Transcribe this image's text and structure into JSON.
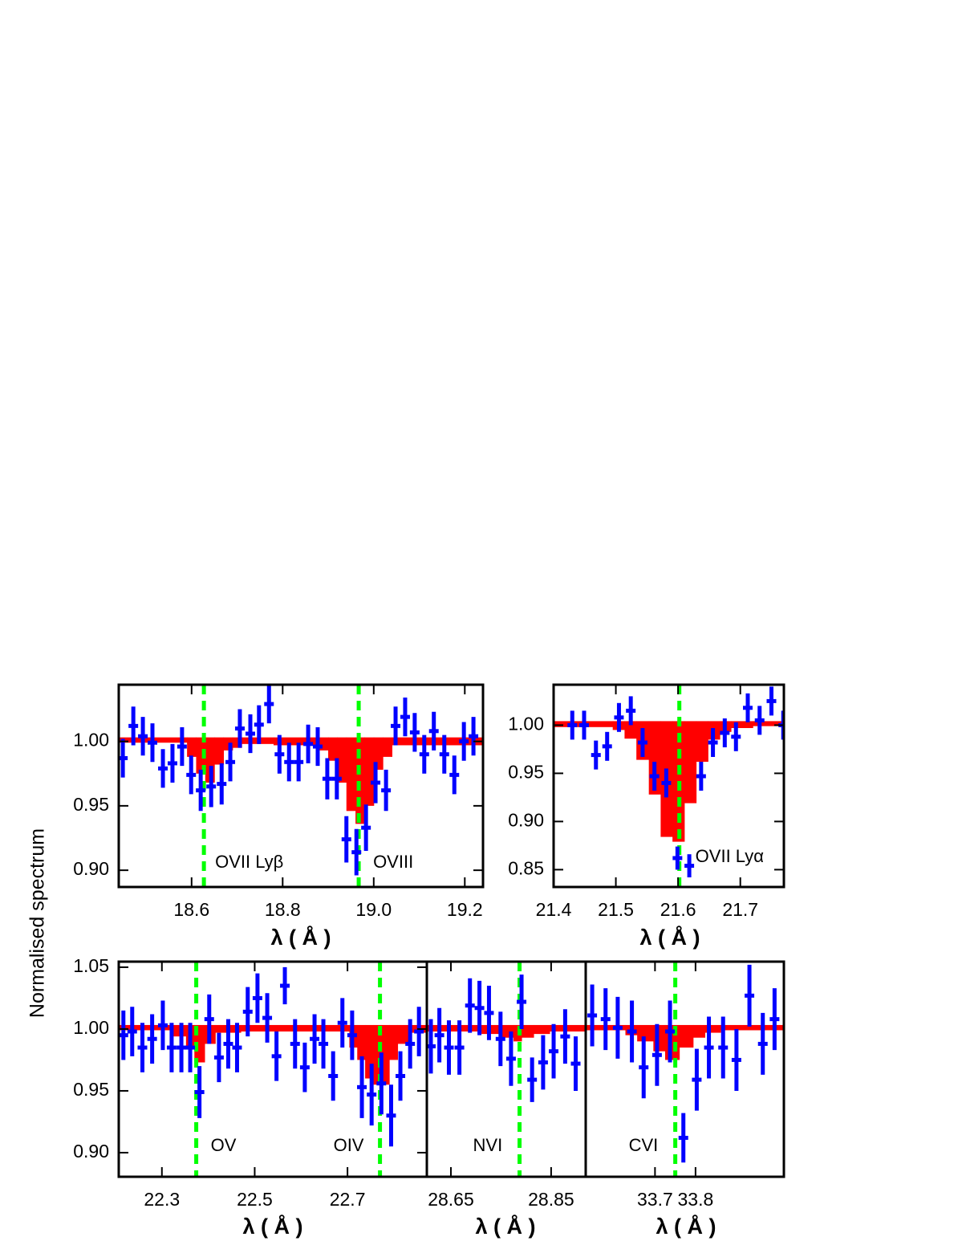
{
  "y_label": "Normalised spectrum",
  "chart_data": [
    {
      "type": "spectrum",
      "x_label": "λ ( Å )",
      "xlim": [
        18.44,
        19.24
      ],
      "ylim": [
        0.887,
        1.044
      ],
      "xticks": [
        18.6,
        18.8,
        {
          "value": 19,
          "label": "19.0"
        },
        19.2
      ],
      "yticks": [
        {
          "value": 0.9,
          "label": "0.90"
        },
        {
          "value": 0.95,
          "label": "0.95"
        },
        {
          "value": 1,
          "label": "1.00"
        }
      ],
      "point_color": "#0000ff",
      "model_color": "#ff0000",
      "marker_color": "#00ff00",
      "x": [
        18.449,
        18.472,
        18.493,
        18.514,
        18.537,
        18.558,
        18.579,
        18.599,
        18.62,
        18.643,
        18.666,
        18.685,
        18.706,
        18.729,
        18.748,
        18.77,
        18.793,
        18.814,
        18.835,
        18.856,
        18.877,
        18.898,
        18.919,
        18.94,
        18.962,
        18.983,
        19.004,
        19.027,
        19.048,
        19.069,
        19.09,
        19.111,
        19.132,
        19.155,
        19.177,
        19.198,
        19.219
      ],
      "values": [
        0.987,
        1.012,
        1.004,
        0.999,
        0.979,
        0.983,
        0.996,
        0.974,
        0.962,
        0.965,
        0.967,
        0.984,
        1.01,
        1.006,
        1.013,
        1.029,
        0.99,
        0.984,
        0.984,
        0.998,
        0.996,
        0.971,
        0.971,
        0.924,
        0.914,
        0.933,
        0.968,
        0.962,
        1.012,
        1.019,
        1.007,
        0.99,
        1.008,
        0.99,
        0.974,
        1,
        1.004
      ],
      "errors": [
        0.015,
        0.015,
        0.015,
        0.015,
        0.015,
        0.015,
        0.015,
        0.015,
        0.016,
        0.016,
        0.016,
        0.015,
        0.015,
        0.015,
        0.015,
        0.015,
        0.015,
        0.015,
        0.015,
        0.015,
        0.015,
        0.016,
        0.016,
        0.018,
        0.018,
        0.018,
        0.016,
        0.016,
        0.015,
        0.015,
        0.015,
        0.015,
        0.015,
        0.015,
        0.015,
        0.015,
        0.015
      ],
      "model_bins": [
        18.44,
        18.59,
        18.61,
        18.63,
        18.65,
        18.67,
        18.69,
        18.71,
        18.78,
        18.88,
        18.9,
        18.92,
        18.94,
        18.96,
        18.98,
        19.0,
        19.02,
        19.04,
        19.24
      ],
      "model_values": [
        0.999,
        0.988,
        0.975,
        0.968,
        0.982,
        0.993,
        0.995,
        0.998,
        0.997,
        0.993,
        0.985,
        0.968,
        0.946,
        0.936,
        0.95,
        0.978,
        0.988,
        0.997
      ],
      "markers": [
        {
          "x": 18.627,
          "label": "OVII  Lyβ"
        },
        {
          "x": 18.967,
          "label": "OVIII"
        }
      ]
    },
    {
      "type": "spectrum",
      "x_label": "λ ( Å )",
      "xlim": [
        21.4,
        21.77
      ],
      "ylim": [
        0.832,
        1.042
      ],
      "xticks": [
        21.4,
        21.5,
        21.6,
        21.7
      ],
      "yticks": [
        {
          "value": 0.85,
          "label": "0.85"
        },
        {
          "value": 0.9,
          "label": "0.90"
        },
        {
          "value": 0.95,
          "label": "0.95"
        },
        {
          "value": 1,
          "label": "1.00"
        }
      ],
      "point_color": "#0000ff",
      "model_color": "#ff0000",
      "marker_color": "#00ff00",
      "x": [
        21.43,
        21.449,
        21.468,
        21.486,
        21.505,
        21.524,
        21.543,
        21.562,
        21.581,
        21.599,
        21.618,
        21.637,
        21.656,
        21.675,
        21.693,
        21.712,
        21.731,
        21.75,
        21.769
      ],
      "values": [
        1,
        1,
        0.969,
        0.978,
        1.008,
        1.015,
        0.982,
        0.947,
        0.94,
        0.862,
        0.854,
        0.947,
        0.982,
        0.992,
        0.988,
        1.018,
        1.005,
        1.025,
        1
      ],
      "errors": [
        0.015,
        0.015,
        0.015,
        0.015,
        0.015,
        0.015,
        0.015,
        0.015,
        0.015,
        0.012,
        0.012,
        0.015,
        0.015,
        0.015,
        0.015,
        0.015,
        0.015,
        0.015,
        0.015
      ],
      "model_bins": [
        21.4,
        21.495,
        21.514,
        21.533,
        21.553,
        21.572,
        21.591,
        21.61,
        21.629,
        21.648,
        21.667,
        21.685,
        21.72,
        21.77
      ],
      "model_values": [
        0.998,
        0.995,
        0.986,
        0.964,
        0.928,
        0.884,
        0.879,
        0.919,
        0.962,
        0.985,
        0.993,
        0.997,
        0.999
      ],
      "markers": [
        {
          "x": 21.602,
          "label": "OVII  Lyα"
        }
      ]
    },
    {
      "type": "spectrum",
      "x_label": "λ ( Å )",
      "xlim": [
        22.207,
        22.871
      ],
      "ylim": [
        0.8805,
        1.0545
      ],
      "xticks": [
        22.3,
        22.5,
        22.7
      ],
      "yticks": [
        {
          "value": 0.9,
          "label": "0.90"
        },
        {
          "value": 0.95,
          "label": "0.95"
        },
        {
          "value": 1,
          "label": "1.00"
        },
        1.05
      ],
      "point_color": "#0000ff",
      "model_color": "#ff0000",
      "marker_color": "#00ff00",
      "x": [
        22.217,
        22.236,
        22.258,
        22.279,
        22.302,
        22.321,
        22.342,
        22.361,
        22.381,
        22.402,
        22.423,
        22.443,
        22.462,
        22.485,
        22.506,
        22.527,
        22.547,
        22.565,
        22.587,
        22.608,
        22.629,
        22.648,
        22.669,
        22.689,
        22.71,
        22.731,
        22.752,
        22.773,
        22.794,
        22.814,
        22.835,
        22.854
      ],
      "values": [
        0.995,
        0.998,
        0.985,
        0.992,
        1.003,
        0.985,
        0.985,
        0.985,
        0.949,
        1.008,
        0.977,
        0.988,
        0.985,
        1.014,
        1.025,
        1.009,
        0.978,
        1.035,
        0.988,
        0.969,
        0.992,
        0.988,
        0.962,
        1.005,
        0.995,
        0.953,
        0.947,
        0.956,
        0.93,
        0.962,
        0.988,
        0.998
      ],
      "errors": [
        0.02,
        0.02,
        0.02,
        0.02,
        0.02,
        0.02,
        0.02,
        0.02,
        0.021,
        0.02,
        0.02,
        0.02,
        0.02,
        0.02,
        0.02,
        0.02,
        0.02,
        0.015,
        0.02,
        0.02,
        0.02,
        0.02,
        0.02,
        0.02,
        0.02,
        0.025,
        0.025,
        0.025,
        0.025,
        0.02,
        0.02,
        0.02
      ],
      "model_bins": [
        22.207,
        22.323,
        22.352,
        22.37,
        22.392,
        22.415,
        22.47,
        22.704,
        22.721,
        22.738,
        22.756,
        22.773,
        22.79,
        22.808,
        22.834,
        22.871
      ],
      "model_values": [
        0.999,
        0.994,
        0.985,
        0.973,
        0.988,
        0.997,
        0.998,
        0.985,
        0.975,
        0.96,
        0.955,
        0.955,
        0.975,
        0.988,
        0.997
      ],
      "markers": [
        {
          "x": 22.374,
          "label": "OV"
        },
        {
          "x": 22.77,
          "label": "OIV"
        }
      ]
    },
    {
      "type": "spectrum",
      "x_label": "λ ( Å )",
      "xlim": [
        28.602,
        28.919
      ],
      "ylim": [
        0.8805,
        1.0545
      ],
      "xticks": [
        28.65,
        28.85
      ],
      "point_color": "#0000ff",
      "model_color": "#ff0000",
      "marker_color": "#00ff00",
      "x": [
        28.61,
        28.627,
        28.646,
        28.667,
        28.688,
        28.707,
        28.726,
        28.749,
        28.77,
        28.791,
        28.812,
        28.834,
        28.855,
        28.878,
        28.899
      ],
      "values": [
        0.986,
        0.995,
        0.985,
        0.985,
        1.019,
        1.017,
        1.013,
        0.992,
        0.976,
        1.022,
        0.959,
        0.973,
        0.982,
        0.994,
        0.972
      ],
      "errors": [
        0.022,
        0.022,
        0.022,
        0.022,
        0.022,
        0.022,
        0.022,
        0.022,
        0.022,
        0.022,
        0.018,
        0.022,
        0.022,
        0.022,
        0.022
      ],
      "model_bins": [
        28.602,
        28.711,
        28.751,
        28.775,
        28.791,
        28.815,
        28.847,
        28.919
      ],
      "model_values": [
        0.998,
        0.996,
        0.993,
        0.99,
        0.993,
        0.996,
        0.998
      ],
      "markers": [
        {
          "x": 28.787,
          "label": "NVI"
        }
      ]
    },
    {
      "type": "spectrum",
      "x_label": "λ ( Å )",
      "xlim": [
        33.529,
        34.018
      ],
      "ylim": [
        0.8805,
        1.0545
      ],
      "xticks": [
        33.7,
        33.8
      ],
      "point_color": "#0000ff",
      "model_color": "#ff0000",
      "marker_color": "#00ff00",
      "x": [
        33.545,
        33.578,
        33.608,
        33.643,
        33.672,
        33.705,
        33.737,
        33.77,
        33.803,
        33.833,
        33.868,
        33.901,
        33.933,
        33.966,
        33.995
      ],
      "values": [
        1.011,
        1.008,
        1.001,
        0.998,
        0.969,
        0.979,
        0.998,
        0.912,
        0.959,
        0.985,
        0.985,
        0.975,
        1.027,
        0.988,
        1.008
      ],
      "errors": [
        0.025,
        0.025,
        0.025,
        0.025,
        0.025,
        0.025,
        0.025,
        0.02,
        0.025,
        0.025,
        0.025,
        0.025,
        0.025,
        0.025,
        0.025
      ],
      "model_bins": [
        33.529,
        33.627,
        33.656,
        33.696,
        33.725,
        33.76,
        33.794,
        33.823,
        33.862,
        34.018
      ],
      "model_values": [
        0.999,
        0.995,
        0.99,
        0.982,
        0.975,
        0.985,
        0.993,
        0.997,
        0.999
      ],
      "markers": [
        {
          "x": 33.75,
          "label": "CVI"
        }
      ]
    }
  ]
}
